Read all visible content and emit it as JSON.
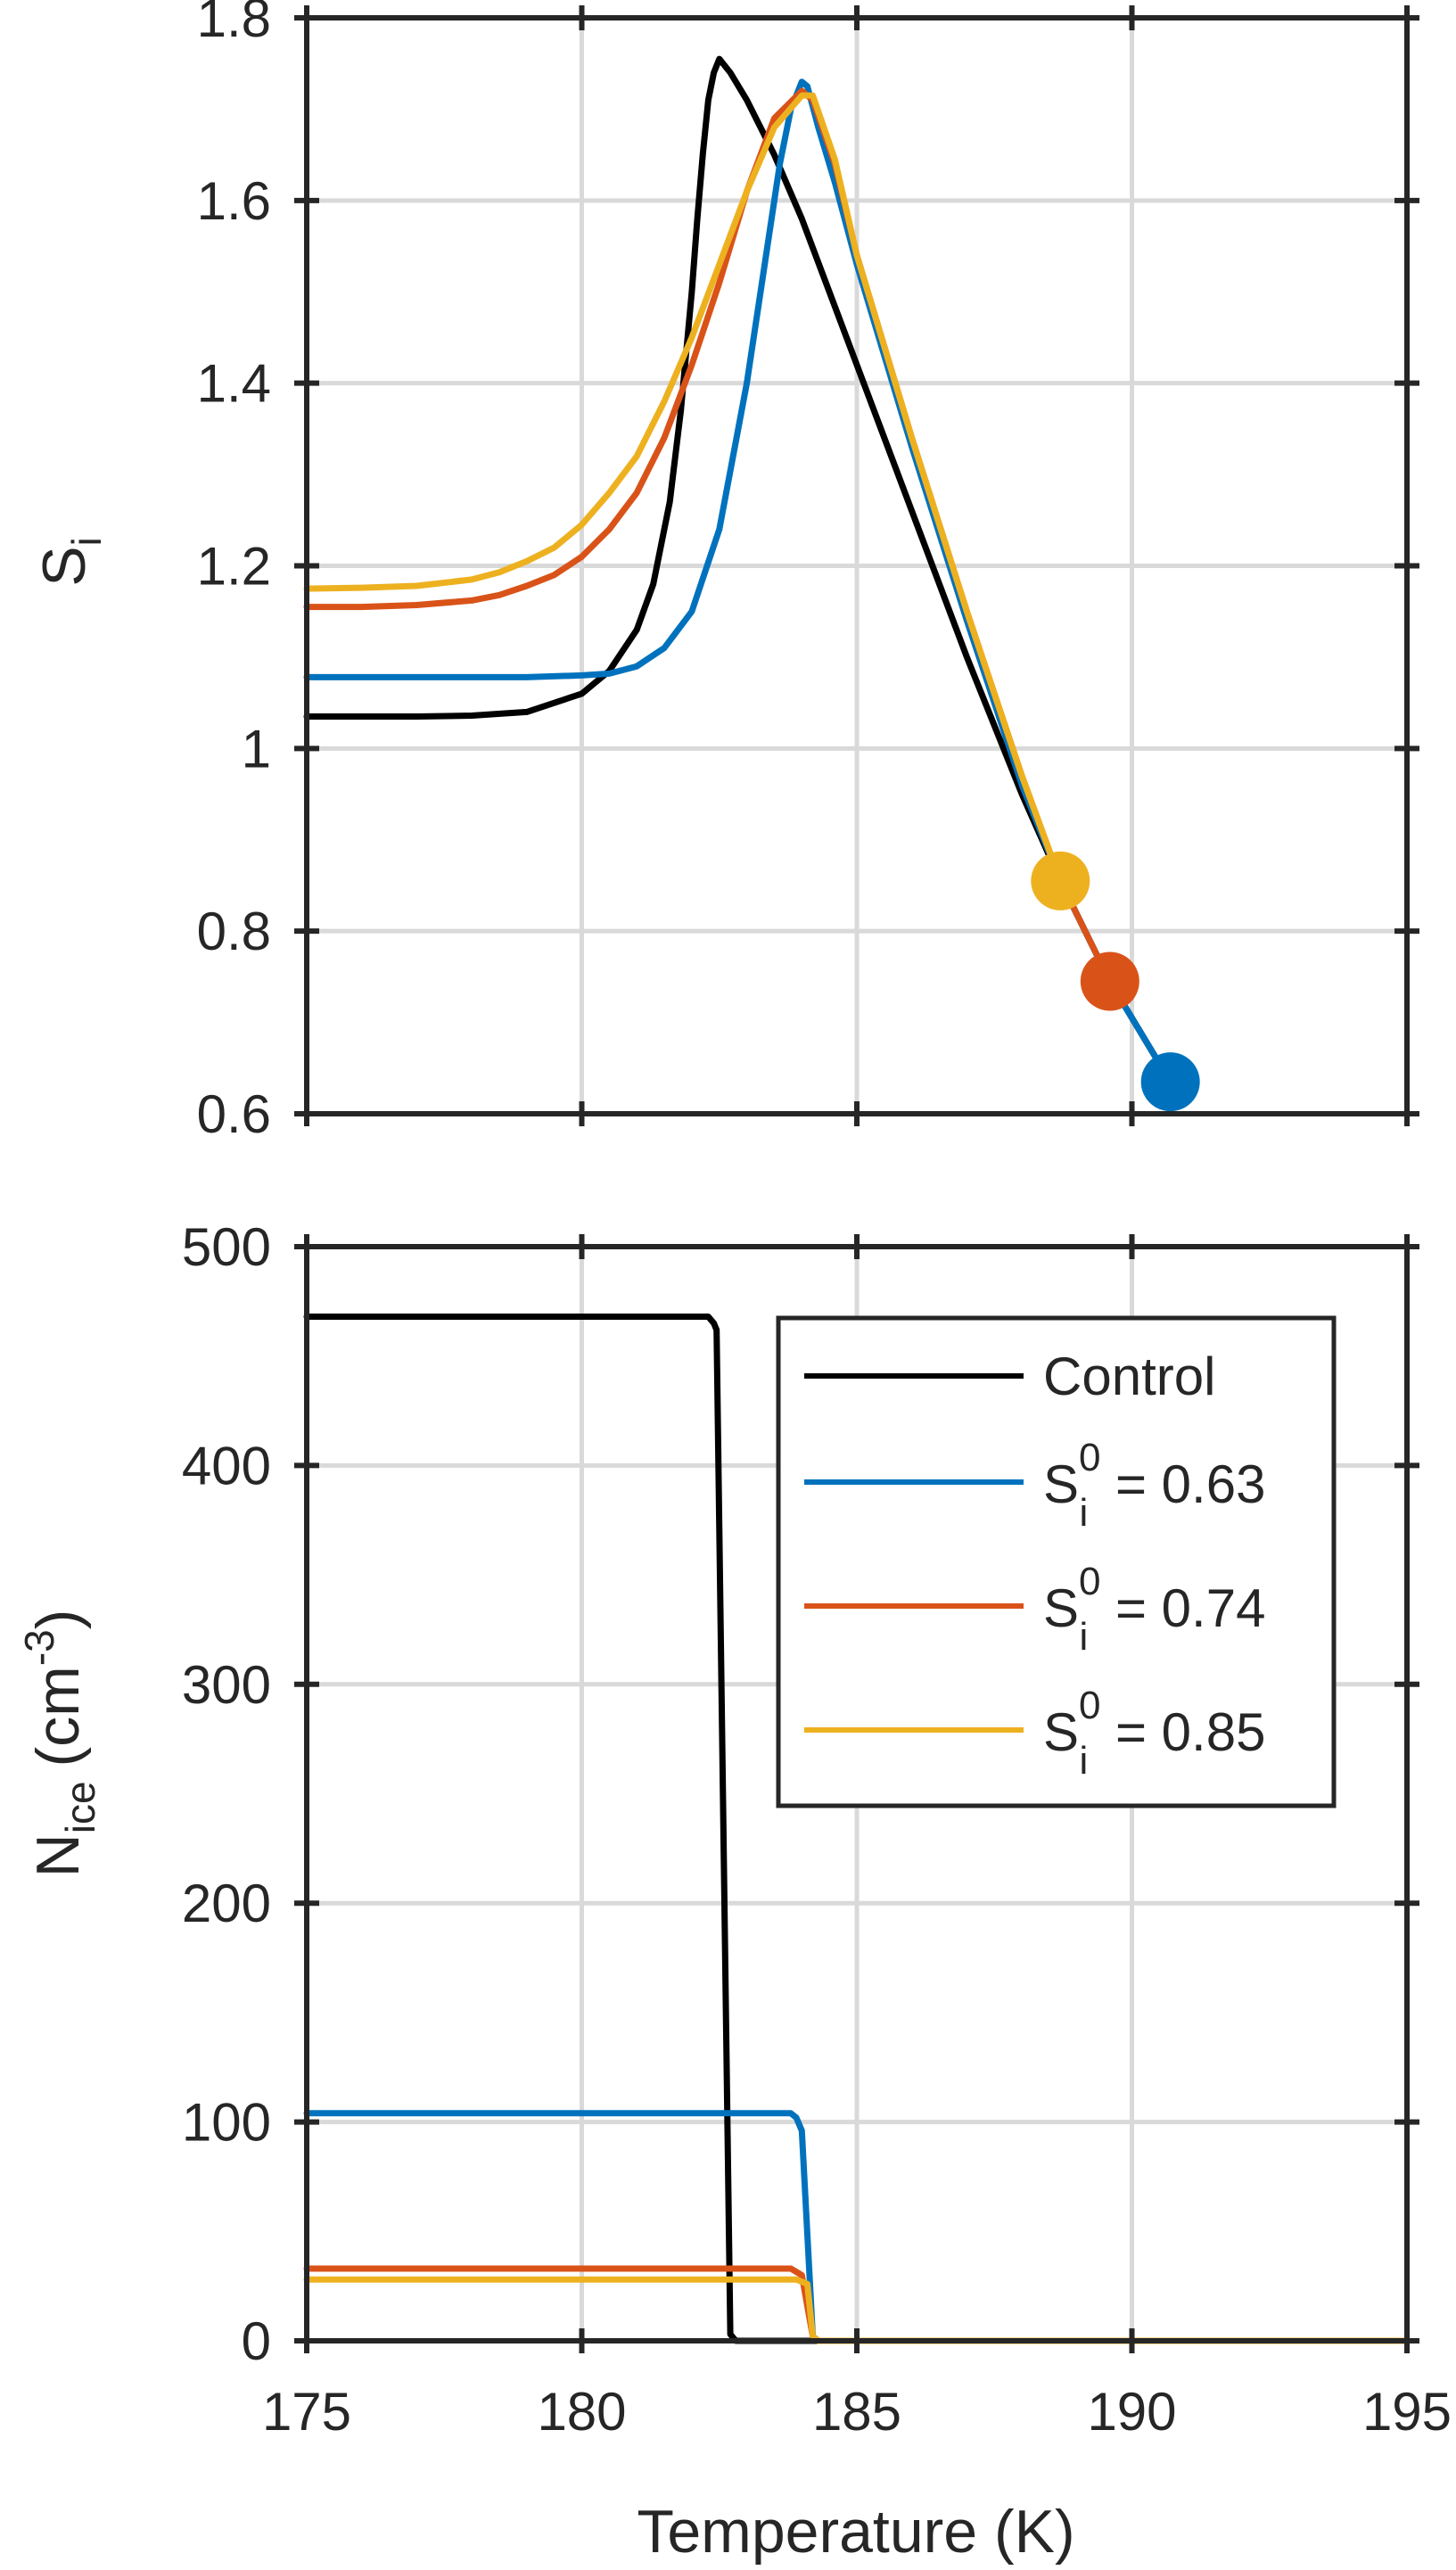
{
  "colors": {
    "control": "#000000",
    "s063": "#0072BD",
    "s074": "#D95319",
    "s085": "#EDB120",
    "grid": "#D9D9D9",
    "axis": "#262626"
  },
  "chart_data": [
    {
      "type": "line",
      "panel": "top",
      "xlabel": "",
      "ylabel": {
        "main": "S",
        "sub": "i"
      },
      "xlim": [
        175,
        195
      ],
      "ylim": [
        0.6,
        1.8
      ],
      "xticks": [
        175,
        180,
        185,
        190,
        195
      ],
      "yticks": [
        0.6,
        0.8,
        1,
        1.2,
        1.4,
        1.6,
        1.8
      ],
      "ytick_labels": [
        "0.6",
        "0.8",
        "1",
        "1.2",
        "1.4",
        "1.6",
        "1.8"
      ],
      "grid": true,
      "series": [
        {
          "key": "control",
          "x": [
            175,
            176,
            177,
            178,
            179,
            180,
            180.5,
            181,
            181.3,
            181.6,
            181.8,
            182.0,
            182.1,
            182.2,
            182.3,
            182.4,
            182.5,
            182.7,
            183.0,
            183.5,
            184,
            185,
            186,
            187,
            188,
            188.7,
            189.6,
            190.7
          ],
          "y": [
            1.035,
            1.035,
            1.035,
            1.036,
            1.04,
            1.06,
            1.085,
            1.13,
            1.18,
            1.27,
            1.37,
            1.5,
            1.58,
            1.65,
            1.71,
            1.74,
            1.755,
            1.74,
            1.71,
            1.65,
            1.58,
            1.42,
            1.26,
            1.1,
            0.95,
            0.855,
            0.745,
            0.635
          ]
        },
        {
          "key": "s063",
          "x": [
            175,
            177,
            179,
            180,
            180.5,
            181,
            181.5,
            182,
            182.5,
            183,
            183.3,
            183.6,
            183.8,
            184.0,
            184.1,
            184.3,
            184.6,
            185,
            186,
            187,
            188,
            188.7,
            189.6,
            190.7
          ],
          "y": [
            1.078,
            1.078,
            1.078,
            1.08,
            1.082,
            1.09,
            1.11,
            1.15,
            1.24,
            1.4,
            1.52,
            1.64,
            1.7,
            1.73,
            1.725,
            1.68,
            1.62,
            1.53,
            1.33,
            1.14,
            0.96,
            0.855,
            0.745,
            0.635
          ]
        },
        {
          "key": "s074",
          "x": [
            175,
            176,
            177,
            178,
            178.5,
            179,
            179.5,
            180,
            180.5,
            181,
            181.5,
            182,
            182.5,
            183,
            183.5,
            184.0,
            184.2,
            184.6,
            185,
            186,
            187,
            188,
            188.7,
            189.6
          ],
          "y": [
            1.155,
            1.155,
            1.157,
            1.162,
            1.168,
            1.178,
            1.19,
            1.21,
            1.24,
            1.28,
            1.34,
            1.42,
            1.51,
            1.61,
            1.69,
            1.72,
            1.71,
            1.64,
            1.54,
            1.34,
            1.15,
            0.97,
            0.855,
            0.745
          ]
        },
        {
          "key": "s085",
          "x": [
            175,
            176,
            177,
            178,
            178.5,
            179,
            179.5,
            180,
            180.5,
            181,
            181.5,
            182,
            182.5,
            183,
            183.5,
            184.0,
            184.2,
            184.6,
            185,
            186,
            187,
            188,
            188.7
          ],
          "y": [
            1.175,
            1.176,
            1.178,
            1.185,
            1.193,
            1.205,
            1.22,
            1.245,
            1.28,
            1.32,
            1.38,
            1.45,
            1.53,
            1.61,
            1.68,
            1.715,
            1.715,
            1.645,
            1.54,
            1.34,
            1.15,
            0.97,
            0.855
          ]
        }
      ],
      "markers": [
        {
          "key": "s085",
          "x": 188.7,
          "y": 0.855
        },
        {
          "key": "s074",
          "x": 189.6,
          "y": 0.745
        },
        {
          "key": "s063",
          "x": 190.7,
          "y": 0.635
        }
      ]
    },
    {
      "type": "line",
      "panel": "bottom",
      "xlabel": "Temperature (K)",
      "ylabel": {
        "main": "N",
        "sub": "ice",
        "unit_pre": "(cm",
        "unit_sup": "-3",
        "unit_post": ")"
      },
      "xlim": [
        175,
        195
      ],
      "ylim": [
        0,
        500
      ],
      "xticks": [
        175,
        180,
        185,
        190,
        195
      ],
      "xtick_labels": [
        "175",
        "180",
        "185",
        "190",
        "195"
      ],
      "yticks": [
        0,
        100,
        200,
        300,
        400,
        500
      ],
      "ytick_labels": [
        "0",
        "100",
        "200",
        "300",
        "400",
        "500"
      ],
      "grid": true,
      "legend_position": "top-right",
      "series": [
        {
          "key": "control",
          "x": [
            175,
            182.3,
            182.4,
            182.45,
            182.7,
            182.8,
            195
          ],
          "y": [
            468,
            468,
            465,
            462,
            3,
            0,
            0
          ]
        },
        {
          "key": "s063",
          "x": [
            175,
            183.8,
            183.9,
            184.0,
            184.2,
            184.3,
            195
          ],
          "y": [
            104,
            104,
            102,
            96,
            2,
            0,
            0
          ]
        },
        {
          "key": "s074",
          "x": [
            175,
            183.8,
            184.0,
            184.2,
            184.3,
            195
          ],
          "y": [
            33,
            33,
            30,
            2,
            0,
            0
          ]
        },
        {
          "key": "s085",
          "x": [
            175,
            183.9,
            184.1,
            184.2,
            184.3,
            195
          ],
          "y": [
            28,
            28,
            26,
            2,
            0,
            0
          ]
        }
      ],
      "legend": [
        {
          "key": "control",
          "label": "Control"
        },
        {
          "key": "s063",
          "main": "S",
          "sup": "0",
          "sub": "i",
          "rest": " = 0.63"
        },
        {
          "key": "s074",
          "main": "S",
          "sup": "0",
          "sub": "i",
          "rest": " = 0.74"
        },
        {
          "key": "s085",
          "main": "S",
          "sup": "0",
          "sub": "i",
          "rest": " = 0.85"
        }
      ]
    }
  ]
}
